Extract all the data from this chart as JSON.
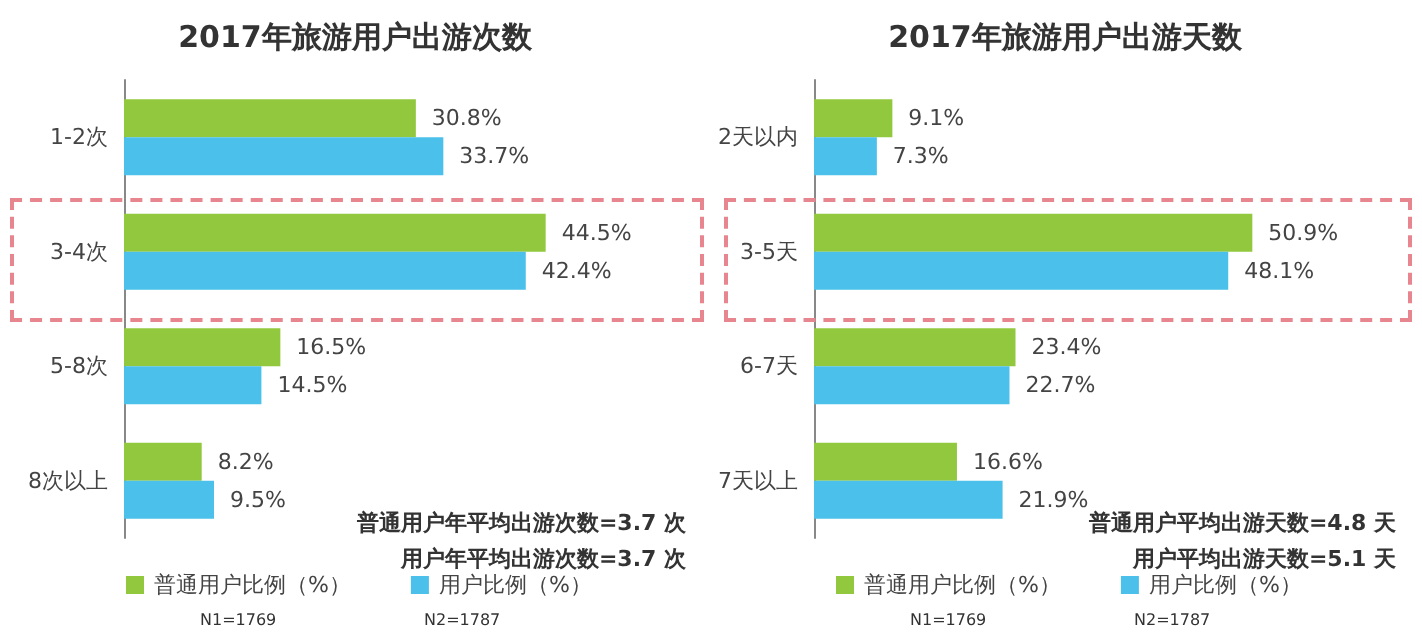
{
  "chart_data": [
    {
      "type": "bar",
      "orientation": "horizontal",
      "title": "2017年旅游用户出游次数",
      "categories": [
        "1-2次",
        "3-4次",
        "5-8次",
        "8次以上"
      ],
      "series": [
        {
          "name": "普通用户比例（%）",
          "color": "#92c83e",
          "values": [
            30.8,
            44.5,
            16.5,
            8.2
          ],
          "value_labels": [
            "30.8%",
            "44.5%",
            "16.5%",
            "8.2%"
          ]
        },
        {
          "name": "用户比例（%）",
          "color": "#4bc0ea",
          "values": [
            33.7,
            42.4,
            14.5,
            9.5
          ],
          "value_labels": [
            "33.7%",
            "42.4%",
            "14.5%",
            "9.5%"
          ]
        }
      ],
      "annotations": [
        "普通用户年平均出游次数=3.7 次",
        "用户年平均出游次数=3.7 次",
        "N1=1769",
        "N2=1787"
      ],
      "legend": "bottom",
      "tick_labels": "y"
    },
    {
      "type": "bar",
      "orientation": "horizontal",
      "title": "2017年旅游用户出游天数",
      "categories": [
        "2天以内",
        "3-5天",
        "6-7天",
        "7天以上"
      ],
      "series": [
        {
          "name": "普通用户比例（%）",
          "color": "#92c83e",
          "values": [
            9.1,
            50.9,
            23.4,
            16.6
          ],
          "value_labels": [
            "9.1%",
            "50.9%",
            "23.4%",
            "16.6%"
          ]
        },
        {
          "name": "用户比例（%）",
          "color": "#4bc0ea",
          "values": [
            7.3,
            48.1,
            22.7,
            21.9
          ],
          "value_labels": [
            "7.3%",
            "48.1%",
            "22.7%",
            "21.9%"
          ]
        }
      ],
      "annotations": [
        "普通用户平均出游天数=4.8 天",
        "用户平均出游天数=5.1 天",
        "N1=1769",
        "N2=1787"
      ],
      "legend": "bottom",
      "tick_labels": "y"
    }
  ]
}
